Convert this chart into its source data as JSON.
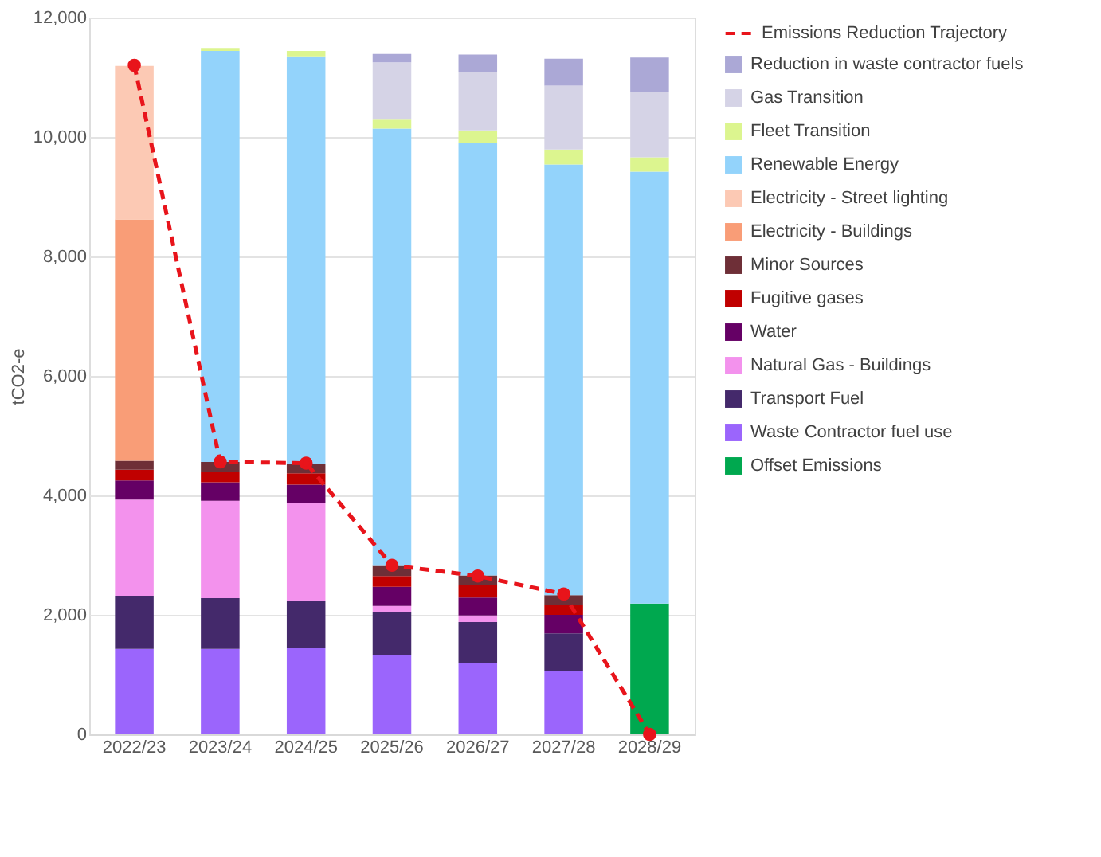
{
  "chart_data": {
    "type": "bar",
    "stacked": true,
    "ylabel": "tCO2-e",
    "categories": [
      "2022/23",
      "2023/24",
      "2024/25",
      "2025/26",
      "2026/27",
      "2027/28",
      "2028/29"
    ],
    "ylim": [
      0,
      12000
    ],
    "yticks": [
      0,
      {
        "value": 2000,
        "label": "2,000"
      },
      {
        "value": 4000,
        "label": "4,000"
      },
      {
        "value": 6000,
        "label": "6,000"
      },
      {
        "value": 8000,
        "label": "8,000"
      },
      {
        "value": 10000,
        "label": "10,000"
      },
      {
        "value": 12000,
        "label": "12,000"
      }
    ],
    "grid": "y",
    "legend": "right",
    "series": [
      {
        "name": "Offset Emissions",
        "color": "#00a84f",
        "values": [
          0,
          0,
          0,
          0,
          0,
          0,
          2190
        ]
      },
      {
        "name": "Waste Contractor fuel use",
        "color": "#9b65fc",
        "values": [
          1430,
          1430,
          1450,
          1320,
          1190,
          1060,
          0
        ]
      },
      {
        "name": "Transport Fuel",
        "color": "#44296b",
        "values": [
          890,
          850,
          780,
          720,
          690,
          630,
          0
        ]
      },
      {
        "name": "Natural Gas - Buildings",
        "color": "#f392ed",
        "values": [
          1610,
          1630,
          1650,
          110,
          110,
          0,
          0
        ]
      },
      {
        "name": "Water",
        "color": "#650065",
        "values": [
          320,
          310,
          300,
          320,
          300,
          310,
          0
        ]
      },
      {
        "name": "Fugitive gases",
        "color": "#c00000",
        "values": [
          180,
          170,
          190,
          180,
          210,
          170,
          0
        ]
      },
      {
        "name": "Minor Sources",
        "color": "#6e2f37",
        "values": [
          150,
          170,
          150,
          170,
          160,
          160,
          0
        ]
      },
      {
        "name": "Electricity - Buildings",
        "color": "#f99d77",
        "values": [
          4040,
          0,
          0,
          0,
          0,
          0,
          0
        ]
      },
      {
        "name": "Electricity - Street lighting",
        "color": "#fcc9b4",
        "values": [
          2570,
          0,
          0,
          0,
          0,
          0,
          0
        ]
      },
      {
        "name": "Renewable Energy",
        "color": "#93d3fb",
        "values": [
          0,
          6880,
          6830,
          7320,
          7240,
          7210,
          7230
        ]
      },
      {
        "name": "Fleet Transition",
        "color": "#dcf58f",
        "values": [
          0,
          50,
          90,
          150,
          210,
          250,
          240
        ]
      },
      {
        "name": "Gas Transition",
        "color": "#d5d3e6",
        "values": [
          0,
          0,
          0,
          960,
          980,
          1070,
          1090
        ]
      },
      {
        "name": "Reduction in waste contractor fuels",
        "color": "#aba8d6",
        "values": [
          0,
          0,
          0,
          140,
          290,
          450,
          580
        ]
      },
      {
        "name": "Emissions Reduction Trajectory",
        "type": "line",
        "color": "#e8141b",
        "line_style": "dashed",
        "marker": "circle",
        "values": [
          11200,
          4560,
          4540,
          2830,
          2650,
          2350,
          0
        ]
      }
    ]
  }
}
